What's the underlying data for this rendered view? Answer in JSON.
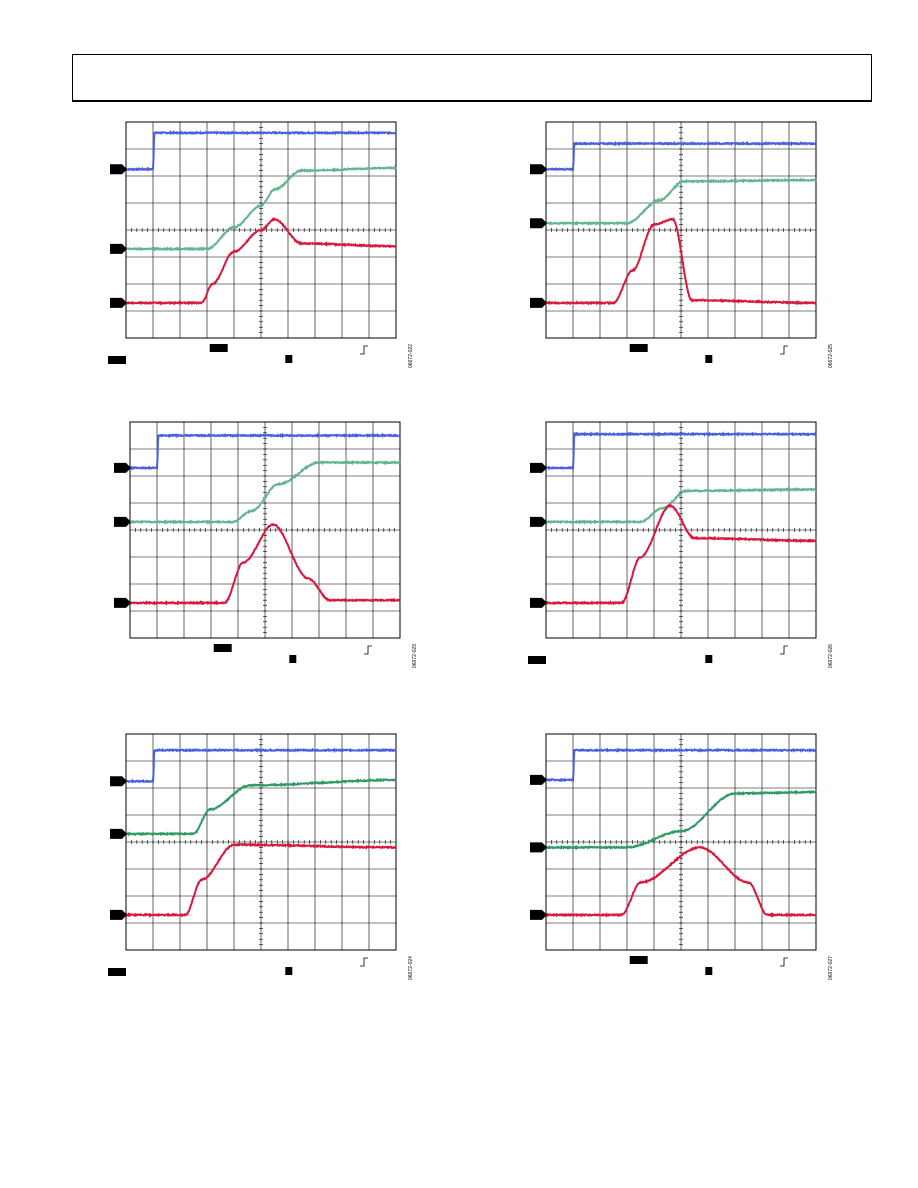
{
  "header": {
    "text": ""
  },
  "colors": {
    "ch1": "#4a5fe0",
    "ch2_light": "#62b58c",
    "ch2_dark": "#2f9a66",
    "ch3": "#d8183c",
    "grid": "#000000"
  },
  "chart_data": [
    {
      "type": "line",
      "figure_id": "06672-022",
      "series": [
        {
          "x": [
            0,
            1,
            1.05,
            10
          ],
          "values": [
            6.25,
            6.25,
            7.6,
            7.6
          ]
        },
        {
          "x": [
            0,
            3,
            4,
            5,
            5.5,
            6.5,
            10
          ],
          "values": [
            3.3,
            3.3,
            4.1,
            4.9,
            5.5,
            6.2,
            6.3
          ]
        },
        {
          "x": [
            0,
            2.8,
            3.2,
            4,
            5,
            5.5,
            6.5,
            10
          ],
          "values": [
            1.3,
            1.3,
            2.0,
            3.2,
            4.0,
            4.4,
            3.5,
            3.4
          ]
        }
      ]
    },
    {
      "type": "line",
      "figure_id": "06672-025",
      "series": [
        {
          "x": [
            0,
            1,
            1.05,
            10
          ],
          "values": [
            6.25,
            6.25,
            7.2,
            7.2
          ]
        },
        {
          "x": [
            0,
            3,
            4.2,
            5.1,
            10
          ],
          "values": [
            4.25,
            4.25,
            5.1,
            5.8,
            5.85
          ]
        },
        {
          "x": [
            0,
            2.5,
            3.2,
            4.0,
            4.7,
            5.4,
            10
          ],
          "values": [
            1.3,
            1.3,
            2.5,
            4.2,
            4.4,
            1.4,
            1.3
          ]
        }
      ]
    },
    {
      "type": "line",
      "figure_id": "06672-023",
      "series": [
        {
          "x": [
            0,
            1,
            1.05,
            10
          ],
          "values": [
            6.3,
            6.3,
            7.5,
            7.5
          ]
        },
        {
          "x": [
            0,
            3.8,
            4.5,
            5.5,
            7,
            10
          ],
          "values": [
            4.3,
            4.3,
            4.7,
            5.7,
            6.5,
            6.5
          ]
        },
        {
          "x": [
            0,
            3.5,
            4.2,
            5.3,
            6.6,
            7.4,
            10
          ],
          "values": [
            1.3,
            1.3,
            2.8,
            4.2,
            2.2,
            1.4,
            1.4
          ]
        }
      ]
    },
    {
      "type": "line",
      "figure_id": "06672-026",
      "series": [
        {
          "x": [
            0,
            1,
            1.05,
            10
          ],
          "values": [
            6.3,
            6.3,
            7.55,
            7.55
          ]
        },
        {
          "x": [
            0,
            3.5,
            4.3,
            5.2,
            10
          ],
          "values": [
            4.3,
            4.3,
            4.8,
            5.45,
            5.5
          ]
        },
        {
          "x": [
            0,
            2.8,
            3.5,
            4.6,
            5.5,
            10
          ],
          "values": [
            1.3,
            1.3,
            3.0,
            4.9,
            3.7,
            3.6
          ]
        }
      ]
    },
    {
      "type": "line",
      "figure_id": "06672-024",
      "series": [
        {
          "x": [
            0,
            1,
            1.05,
            10
          ],
          "values": [
            6.25,
            6.25,
            7.4,
            7.4
          ]
        },
        {
          "x": [
            0,
            2.5,
            3.1,
            4.6,
            10
          ],
          "values": [
            4.3,
            4.3,
            5.2,
            6.1,
            6.3
          ]
        },
        {
          "x": [
            0,
            2.2,
            2.8,
            4,
            10
          ],
          "values": [
            1.3,
            1.3,
            2.6,
            3.9,
            3.8
          ]
        }
      ]
    },
    {
      "type": "line",
      "figure_id": "06672-027",
      "series": [
        {
          "x": [
            0,
            1,
            1.05,
            10
          ],
          "values": [
            6.3,
            6.3,
            7.4,
            7.4
          ]
        },
        {
          "x": [
            0,
            3,
            5,
            7,
            10
          ],
          "values": [
            3.8,
            3.8,
            4.4,
            5.8,
            5.85
          ]
        },
        {
          "x": [
            0,
            2.8,
            3.5,
            5.7,
            7.5,
            8.2,
            10
          ],
          "values": [
            1.3,
            1.3,
            2.5,
            3.8,
            2.5,
            1.3,
            1.3
          ]
        }
      ]
    }
  ]
}
